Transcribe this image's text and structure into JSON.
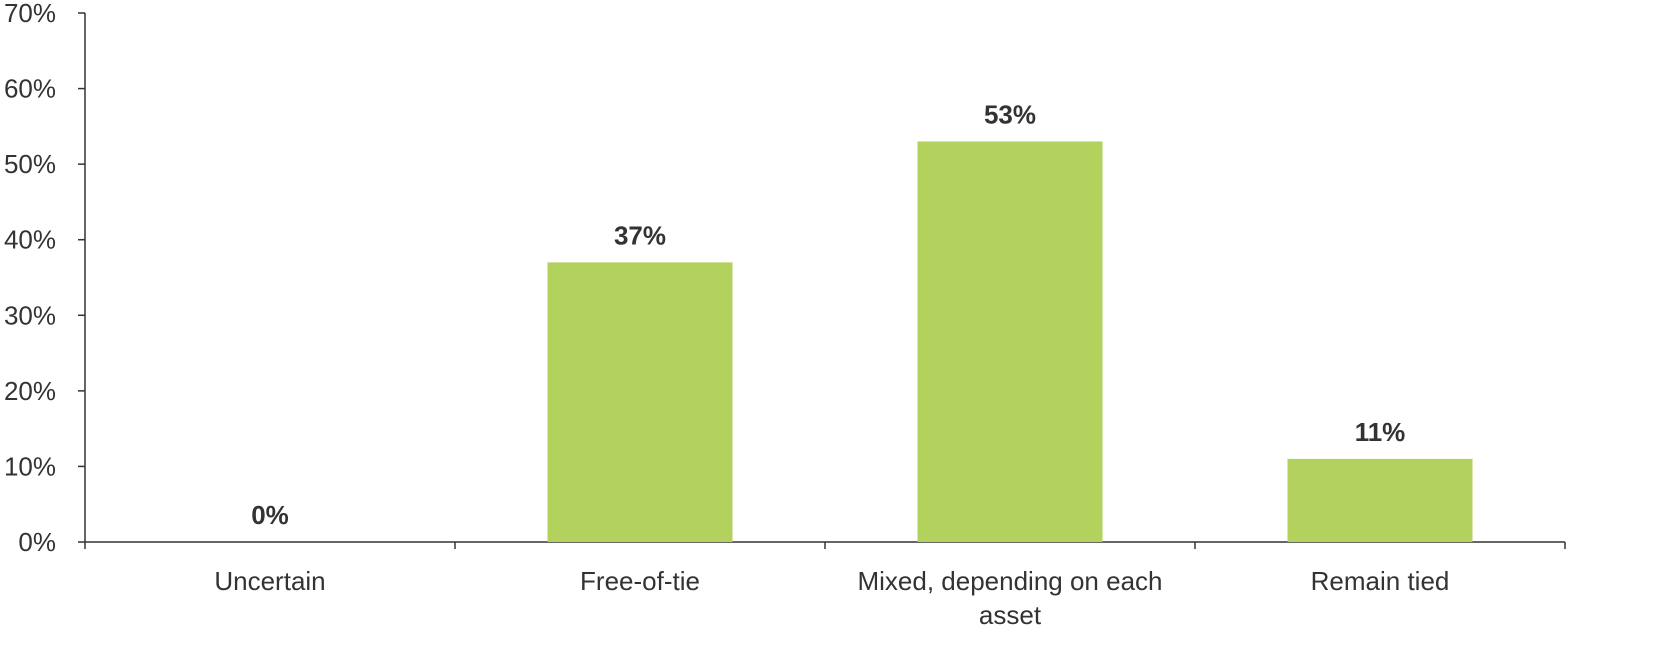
{
  "chart_data": {
    "type": "bar",
    "categories": [
      "Uncertain",
      "Free-of-tie",
      "Mixed, depending on each asset",
      "Remain tied"
    ],
    "values": [
      0,
      37,
      53,
      11
    ],
    "data_labels": [
      "0%",
      "37%",
      "53%",
      "11%"
    ],
    "ylim": [
      0,
      70
    ],
    "yticks": [
      0,
      10,
      20,
      30,
      40,
      50,
      60,
      70
    ],
    "ytick_labels": [
      "0%",
      "10%",
      "20%",
      "30%",
      "40%",
      "50%",
      "60%",
      "70%"
    ],
    "title": "",
    "xlabel": "",
    "ylabel": "",
    "grid": false,
    "legend": "none",
    "colors": {
      "bar": "#b3d15d",
      "axis": "#333333",
      "text": "#333333"
    }
  }
}
